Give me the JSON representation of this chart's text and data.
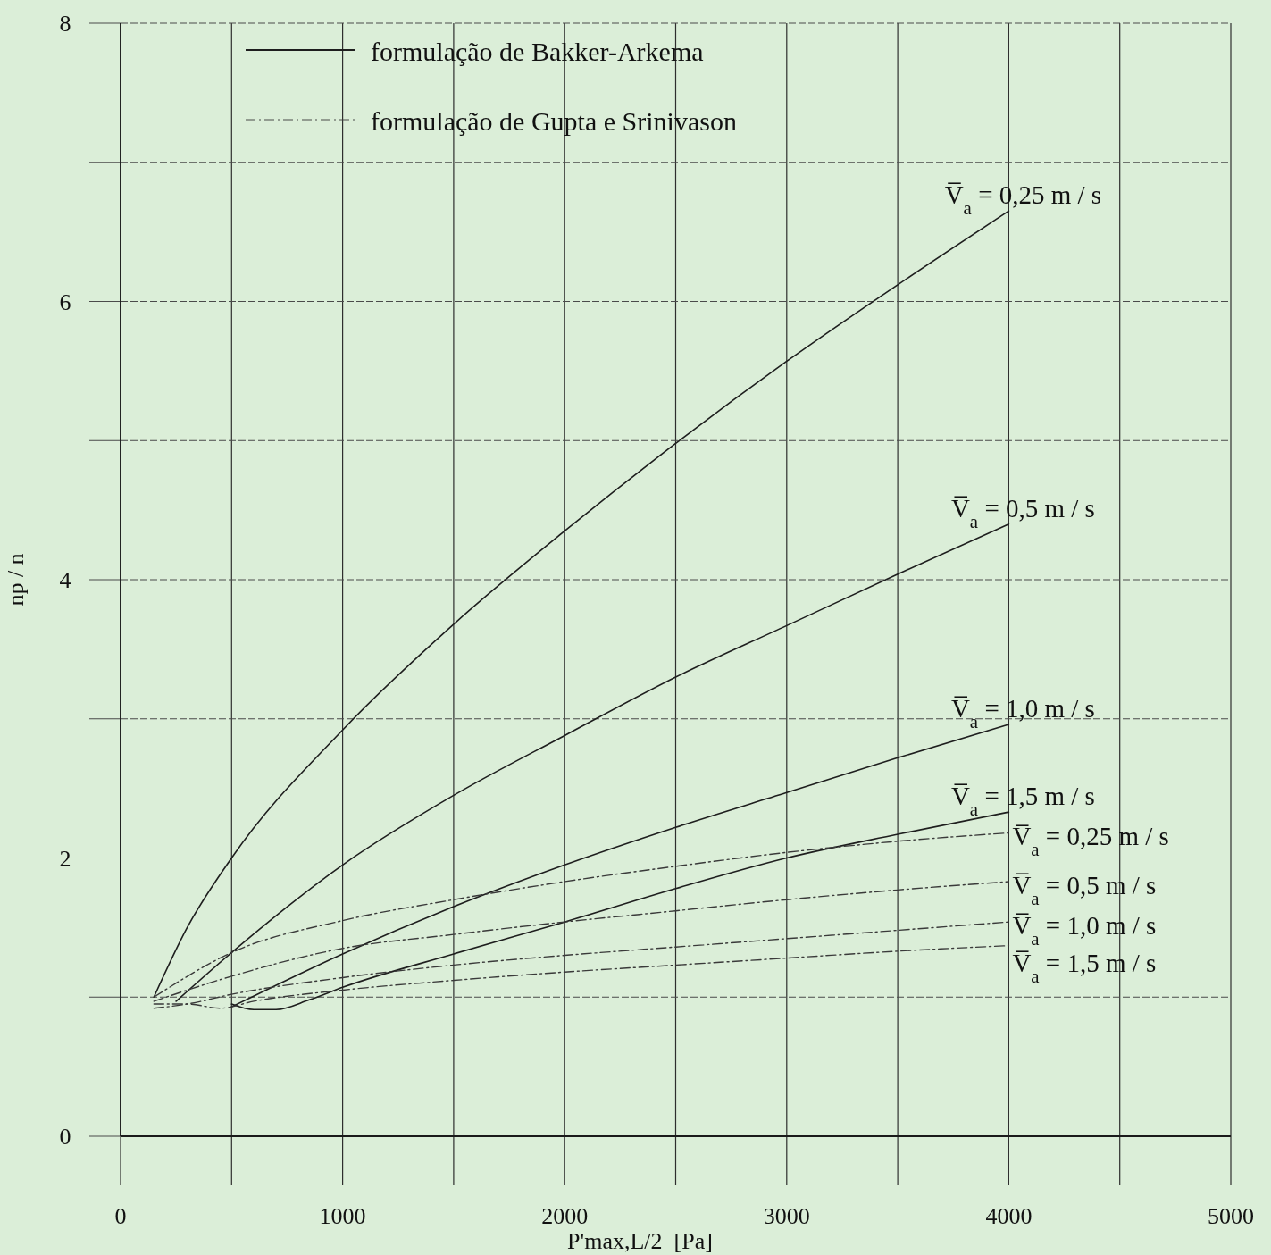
{
  "chart_data": {
    "type": "line",
    "xlabel": "P'max,L/2  [Pa]",
    "ylabel": "np / n",
    "annotations": [
      "formulação de Bakker-Arkema",
      "formulação de Gupta e Srinivason"
    ],
    "xlim": [
      0,
      5000
    ],
    "ylim": [
      0,
      8
    ],
    "xticks": [
      0,
      {
        "value": 500,
        "label": null
      },
      1000,
      {
        "value": 1500,
        "label": null
      },
      2000,
      {
        "value": 2500,
        "label": null
      },
      3000,
      {
        "value": 3500,
        "label": null
      },
      4000,
      {
        "value": 4500,
        "label": null
      },
      5000
    ],
    "yticks": [
      0,
      {
        "value": 1,
        "label": null
      },
      2,
      {
        "value": 3,
        "label": null
      },
      4,
      {
        "value": 5,
        "label": null
      },
      6,
      {
        "value": 7,
        "label": null
      },
      8
    ],
    "grid": true,
    "series": [
      {
        "name": "V̅$_{a}$ = 0,25 m / s",
        "color": "#1e1e1e",
        "line_style": "solid",
        "x": [
          150,
          300,
          500,
          1000,
          1500,
          2000,
          2500,
          3000,
          3500,
          4000
        ],
        "values": [
          1.0,
          1.5,
          2.0,
          2.92,
          3.68,
          4.35,
          4.98,
          5.57,
          6.12,
          6.65
        ]
      },
      {
        "name": "V̅$_{a}$ = 0,5 m / s",
        "color": "#1e1e1e",
        "line_style": "solid",
        "x": [
          250,
          500,
          1000,
          1500,
          2000,
          2500,
          3000,
          3500,
          4000
        ],
        "values": [
          0.97,
          1.32,
          1.95,
          2.45,
          2.88,
          3.3,
          3.67,
          4.04,
          4.4
        ]
      },
      {
        "name": "V̅$_{a}$ = 1,0 m / s",
        "color": "#1e1e1e",
        "line_style": "solid",
        "x": [
          500,
          1000,
          1500,
          2000,
          2500,
          3000,
          3500,
          4000
        ],
        "values": [
          0.93,
          1.31,
          1.65,
          1.95,
          2.22,
          2.47,
          2.72,
          2.96
        ]
      },
      {
        "name": "V̅$_{a}$ = 1,5 m / s",
        "color": "#1e1e1e",
        "line_style": "solid",
        "x": [
          500,
          600,
          700,
          850,
          1000,
          1500,
          2000,
          2500,
          3000,
          3500,
          4000
        ],
        "values": [
          0.95,
          0.91,
          0.91,
          0.98,
          1.07,
          1.31,
          1.54,
          1.78,
          2.0,
          2.17,
          2.33
        ]
      },
      {
        "name": "V̅$_{a}$ = 0,25 m / s",
        "color": "#3a3a3a",
        "line_style": "dashed",
        "x": [
          150,
          500,
          1000,
          1500,
          2000,
          2500,
          3000,
          3500,
          4000
        ],
        "values": [
          1.0,
          1.32,
          1.55,
          1.7,
          1.83,
          1.94,
          2.04,
          2.12,
          2.18
        ]
      },
      {
        "name": "V̅$_{a}$ = 0,5 m / s",
        "color": "#3a3a3a",
        "line_style": "dashed",
        "x": [
          150,
          500,
          1000,
          1500,
          2000,
          2500,
          3000,
          3500,
          4000
        ],
        "values": [
          0.97,
          1.15,
          1.35,
          1.45,
          1.54,
          1.62,
          1.7,
          1.77,
          1.83
        ]
      },
      {
        "name": "V̅$_{a}$ = 1,0 m / s",
        "color": "#3a3a3a",
        "line_style": "dashed",
        "x": [
          150,
          300,
          500,
          1000,
          1500,
          2000,
          2500,
          3000,
          3500,
          4000
        ],
        "values": [
          0.92,
          0.95,
          1.02,
          1.14,
          1.23,
          1.3,
          1.36,
          1.42,
          1.48,
          1.54
        ]
      },
      {
        "name": "V̅$_{a}$ = 1,5 m / s",
        "color": "#3a3a3a",
        "line_style": "dashed",
        "x": [
          150,
          300,
          450,
          600,
          1000,
          1500,
          2000,
          2500,
          3000,
          3500,
          4000
        ],
        "values": [
          0.95,
          0.95,
          0.92,
          0.97,
          1.05,
          1.12,
          1.18,
          1.23,
          1.28,
          1.33,
          1.37
        ]
      }
    ]
  }
}
